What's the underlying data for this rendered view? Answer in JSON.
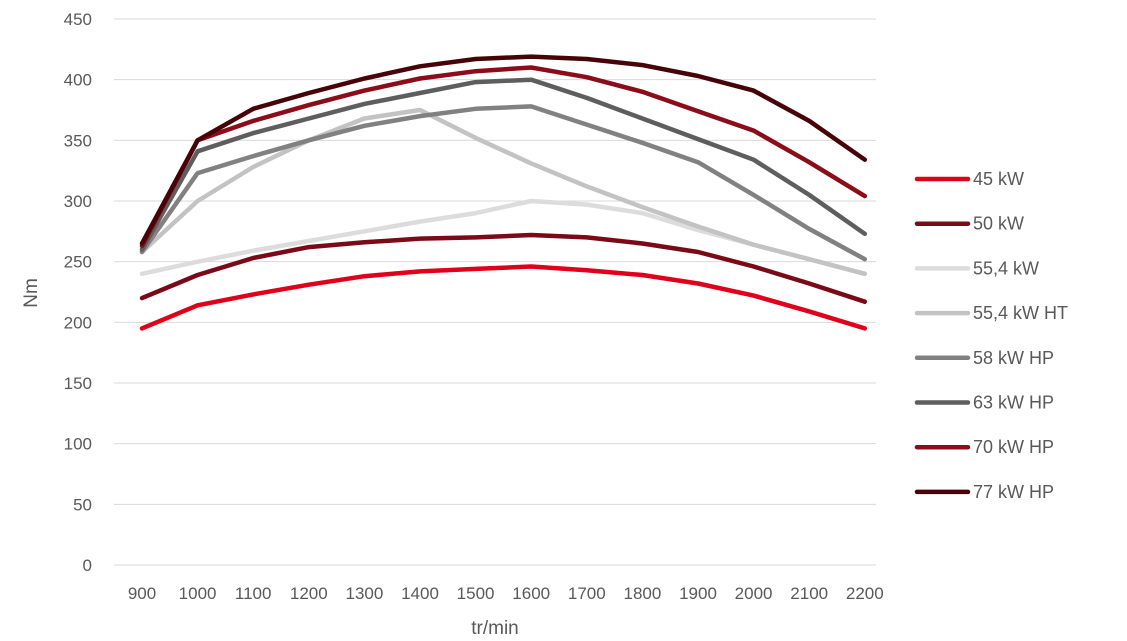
{
  "chart_data": {
    "type": "line",
    "title": "",
    "xlabel": "tr/min",
    "ylabel": "Nm",
    "ylim": [
      0,
      450
    ],
    "yticks": [
      0,
      50,
      100,
      150,
      200,
      250,
      300,
      350,
      400,
      450
    ],
    "grid": true,
    "legend_position": "right",
    "categories": [
      "900",
      "1000",
      "1100",
      "1200",
      "1300",
      "1400",
      "1500",
      "1600",
      "1700",
      "1800",
      "1900",
      "2000",
      "2100",
      "2200"
    ],
    "series": [
      {
        "name": "45 kW",
        "color": "#e0001b",
        "values": [
          195,
          214,
          223,
          231,
          238,
          242,
          244,
          246,
          243,
          239,
          232,
          222,
          209,
          195
        ]
      },
      {
        "name": "50 kW",
        "color": "#7a0a17",
        "values": [
          220,
          239,
          253,
          262,
          266,
          269,
          270,
          272,
          270,
          265,
          258,
          246,
          232,
          217
        ]
      },
      {
        "name": "55,4 kW",
        "color": "#dcdcdc",
        "values": [
          240,
          250,
          259,
          267,
          275,
          283,
          290,
          300,
          297,
          290,
          276,
          264,
          252,
          240
        ]
      },
      {
        "name": "55,4 kW HT",
        "color": "#c3c3c3",
        "values": [
          258,
          300,
          328,
          350,
          368,
          375,
          352,
          331,
          312,
          295,
          279,
          264,
          252,
          240
        ]
      },
      {
        "name": "58 kW HP",
        "color": "#818181",
        "values": [
          258,
          323,
          337,
          350,
          362,
          370,
          376,
          378,
          363,
          348,
          332,
          305,
          277,
          252
        ]
      },
      {
        "name": "63 kW HP",
        "color": "#5e5e5e",
        "values": [
          260,
          341,
          356,
          368,
          380,
          389,
          398,
          400,
          385,
          368,
          351,
          334,
          305,
          273
        ]
      },
      {
        "name": "70 kW HP",
        "color": "#8c0d1a",
        "values": [
          263,
          350,
          366,
          379,
          391,
          401,
          407,
          410,
          402,
          390,
          374,
          358,
          332,
          304
        ]
      },
      {
        "name": "77 kW HP",
        "color": "#470408",
        "values": [
          265,
          350,
          376,
          389,
          401,
          411,
          417,
          419,
          417,
          412,
          403,
          391,
          366,
          334
        ]
      }
    ]
  }
}
